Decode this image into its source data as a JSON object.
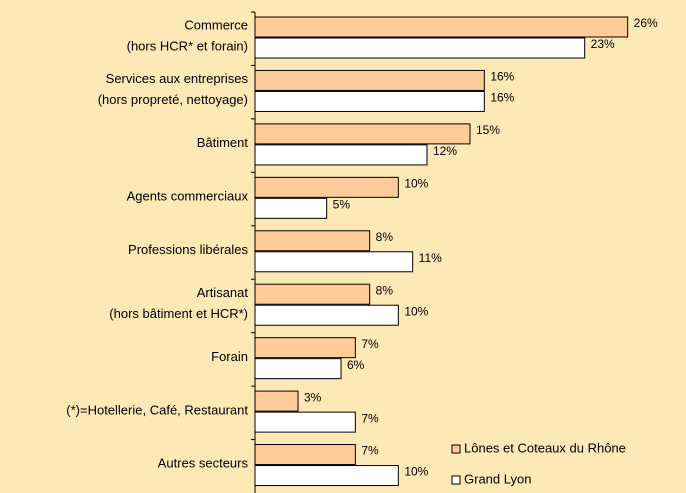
{
  "chart_data": {
    "type": "hbar",
    "categories": [
      [
        "Commerce",
        "(hors HCR* et forain)"
      ],
      [
        "Services aux entreprises",
        "(hors propreté, nettoyage)"
      ],
      [
        "Bâtiment"
      ],
      [
        "Agents commerciaux"
      ],
      [
        "Professions libérales"
      ],
      [
        "Artisanat",
        "(hors bâtiment et HCR*)"
      ],
      [
        "Forain"
      ],
      [
        "(*)=Hotellerie, Café, Restaurant"
      ],
      [
        "Autres secteurs"
      ]
    ],
    "series": [
      {
        "name": "Lônes et Coteaux du Rhône",
        "color": "#ffcc99",
        "values": [
          26,
          16,
          15,
          10,
          8,
          8,
          7,
          3,
          7
        ],
        "value_labels": [
          "26%",
          "16%",
          "15%",
          "10%",
          "8%",
          "8%",
          "7%",
          "3%",
          "7%"
        ]
      },
      {
        "name": "Grand Lyon",
        "color": "#ffffff",
        "values": [
          23,
          16,
          12,
          5,
          11,
          10,
          6,
          7,
          10
        ],
        "value_labels": [
          "23%",
          "16%",
          "12%",
          "5%",
          "11%",
          "10%",
          "6%",
          "7%",
          "10%"
        ]
      }
    ],
    "xlim": [
      0,
      30
    ],
    "legend": "bottom-right"
  }
}
